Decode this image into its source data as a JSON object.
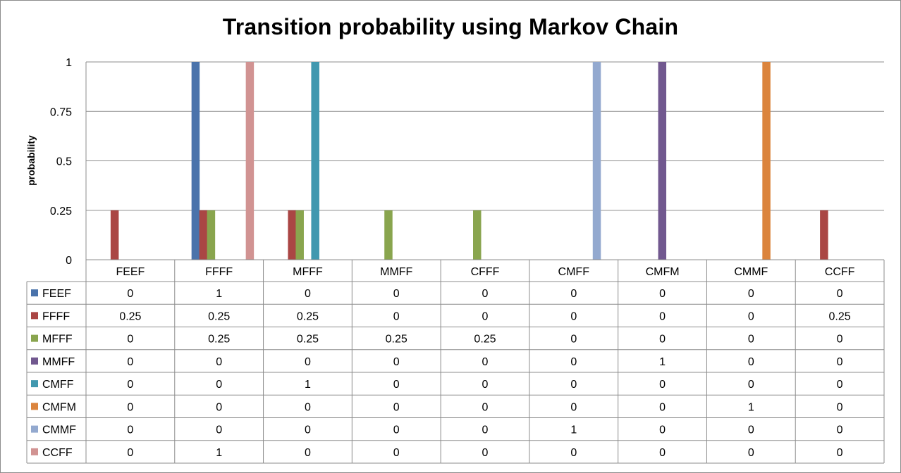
{
  "chart_data": {
    "type": "bar",
    "title": "Transition probability using Markov Chain",
    "xlabel": "",
    "ylabel": "probability",
    "ylim": [
      0,
      1
    ],
    "yticks": [
      "0",
      "0.25",
      "0.5",
      "0.75",
      "1"
    ],
    "grid": true,
    "legend": "data-table",
    "categories": [
      "FEEF",
      "FFFF",
      "MFFF",
      "MMFF",
      "CFFF",
      "CMFF",
      "CMFM",
      "CMMF",
      "CCFF"
    ],
    "series": [
      {
        "name": "FEEF",
        "color": "#4a73ab",
        "values": [
          0,
          1,
          0,
          0,
          0,
          0,
          0,
          0,
          0
        ],
        "labels": [
          "0",
          "1",
          "0",
          "0",
          "0",
          "0",
          "0",
          "0",
          "0"
        ]
      },
      {
        "name": "FFFF",
        "color": "#aa4644",
        "values": [
          0.25,
          0.25,
          0.25,
          0,
          0,
          0,
          0,
          0,
          0.25
        ],
        "labels": [
          "0.25",
          "0.25",
          "0.25",
          "0",
          "0",
          "0",
          "0",
          "0",
          "0.25"
        ]
      },
      {
        "name": "MFFF",
        "color": "#89a54e",
        "values": [
          0,
          0.25,
          0.25,
          0.25,
          0.25,
          0,
          0,
          0,
          0
        ],
        "labels": [
          "0",
          "0.25",
          "0.25",
          "0.25",
          "0.25",
          "0",
          "0",
          "0",
          "0"
        ]
      },
      {
        "name": "MMFF",
        "color": "#71588f",
        "values": [
          0,
          0,
          0,
          0,
          0,
          0,
          1,
          0,
          0
        ],
        "labels": [
          "0",
          "0",
          "0",
          "0",
          "0",
          "0",
          "1",
          "0",
          "0"
        ]
      },
      {
        "name": "CMFF",
        "color": "#4198af",
        "values": [
          0,
          0,
          1,
          0,
          0,
          0,
          0,
          0,
          0
        ],
        "labels": [
          "0",
          "0",
          "1",
          "0",
          "0",
          "0",
          "0",
          "0",
          "0"
        ]
      },
      {
        "name": "CMFM",
        "color": "#db843d",
        "values": [
          0,
          0,
          0,
          0,
          0,
          0,
          0,
          1,
          0
        ],
        "labels": [
          "0",
          "0",
          "0",
          "0",
          "0",
          "0",
          "0",
          "1",
          "0"
        ]
      },
      {
        "name": "CMMF",
        "color": "#93a9cf",
        "values": [
          0,
          0,
          0,
          0,
          0,
          1,
          0,
          0,
          0
        ],
        "labels": [
          "0",
          "0",
          "0",
          "0",
          "0",
          "1",
          "0",
          "0",
          "0"
        ]
      },
      {
        "name": "CCFF",
        "color": "#d19392",
        "values": [
          0,
          1,
          0,
          0,
          0,
          0,
          0,
          0,
          0
        ],
        "labels": [
          "0",
          "1",
          "0",
          "0",
          "0",
          "0",
          "0",
          "0",
          "0"
        ]
      }
    ]
  }
}
